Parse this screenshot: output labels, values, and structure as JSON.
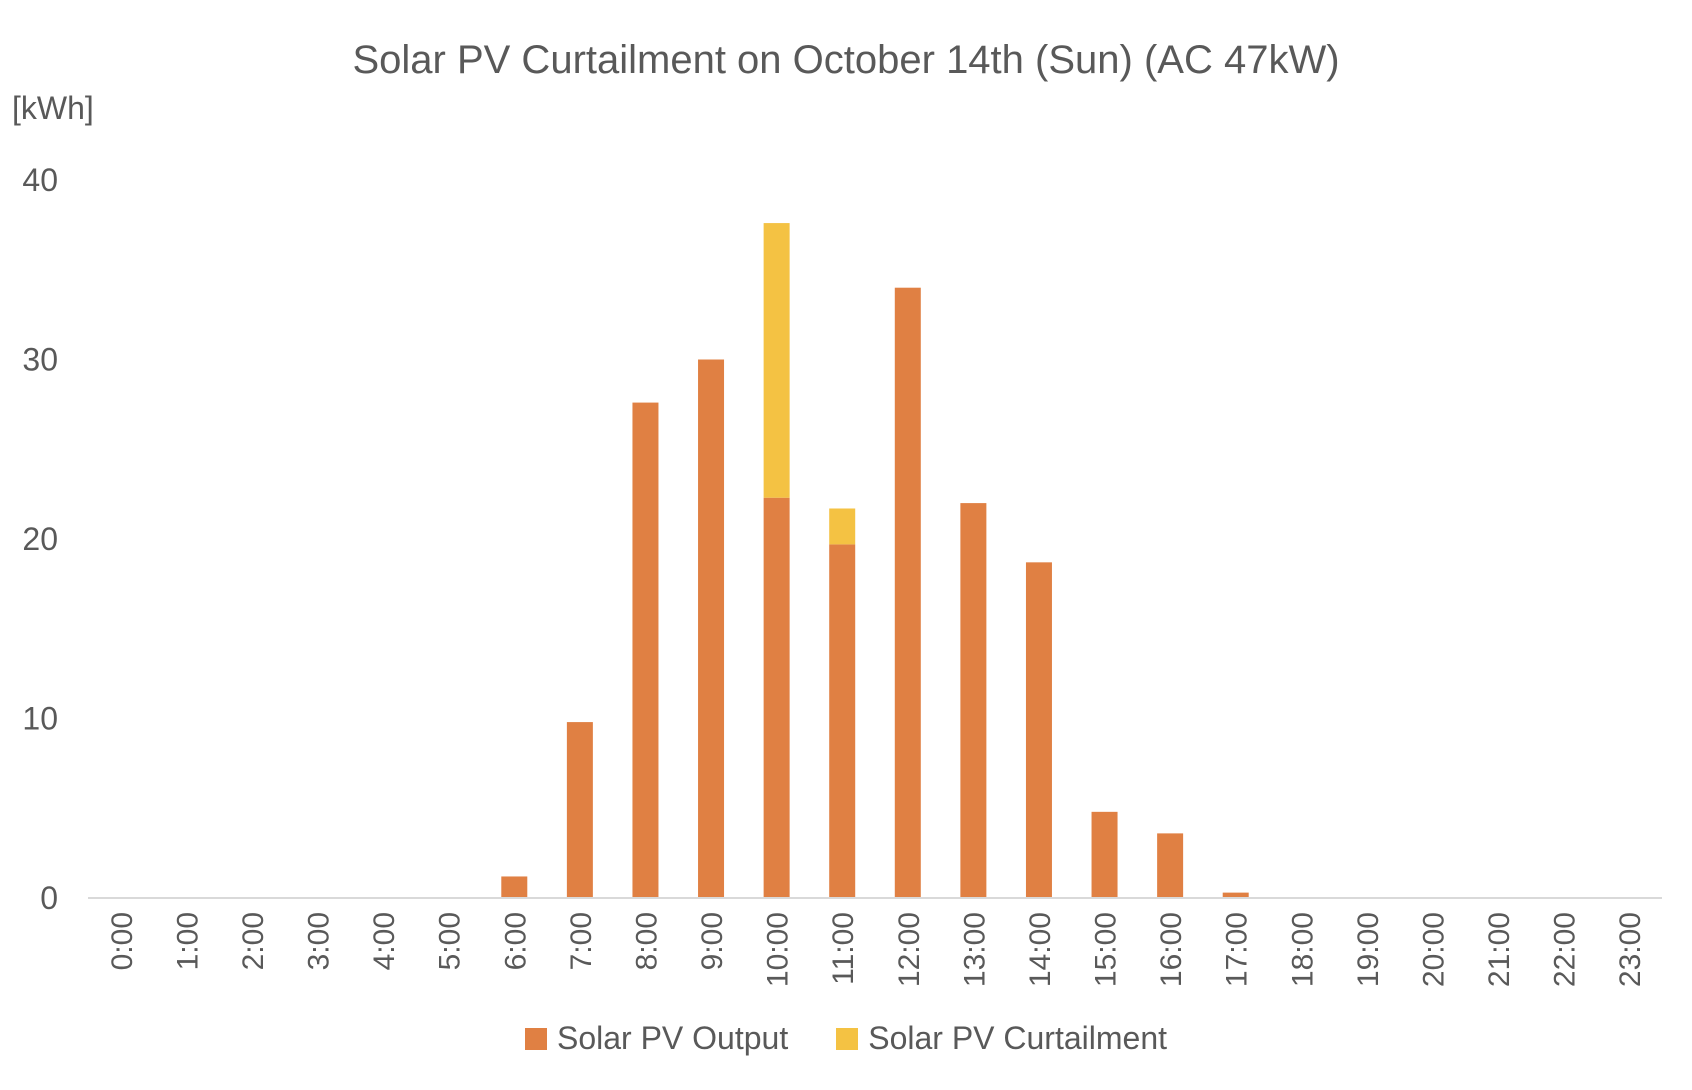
{
  "chart_data": {
    "type": "bar",
    "stacked": true,
    "title": "Solar PV Curtailment on October 14th (Sun) (AC 47kW)",
    "ylabel": "[kWh]",
    "xlabel": "",
    "ylim": [
      0,
      40
    ],
    "yticks": [
      0,
      10,
      20,
      30,
      40
    ],
    "grid": false,
    "legend_position": "bottom",
    "categories": [
      "0:00",
      "1:00",
      "2:00",
      "3:00",
      "4:00",
      "5:00",
      "6:00",
      "7:00",
      "8:00",
      "9:00",
      "10:00",
      "11:00",
      "12:00",
      "13:00",
      "14:00",
      "15:00",
      "16:00",
      "17:00",
      "18:00",
      "19:00",
      "20:00",
      "21:00",
      "22:00",
      "23:00"
    ],
    "series": [
      {
        "name": "Solar PV Output",
        "color": "#E08043",
        "values": [
          0,
          0,
          0,
          0,
          0,
          0,
          1.2,
          9.8,
          27.6,
          30.0,
          22.3,
          19.7,
          34.0,
          22.0,
          18.7,
          4.8,
          3.6,
          0.3,
          0,
          0,
          0,
          0,
          0,
          0
        ]
      },
      {
        "name": "Solar PV Curtailment",
        "color": "#F4C243",
        "values": [
          0,
          0,
          0,
          0,
          0,
          0,
          0,
          0,
          0,
          0,
          15.3,
          2.0,
          0,
          0,
          0,
          0,
          0,
          0,
          0,
          0,
          0,
          0,
          0,
          0
        ]
      }
    ]
  }
}
